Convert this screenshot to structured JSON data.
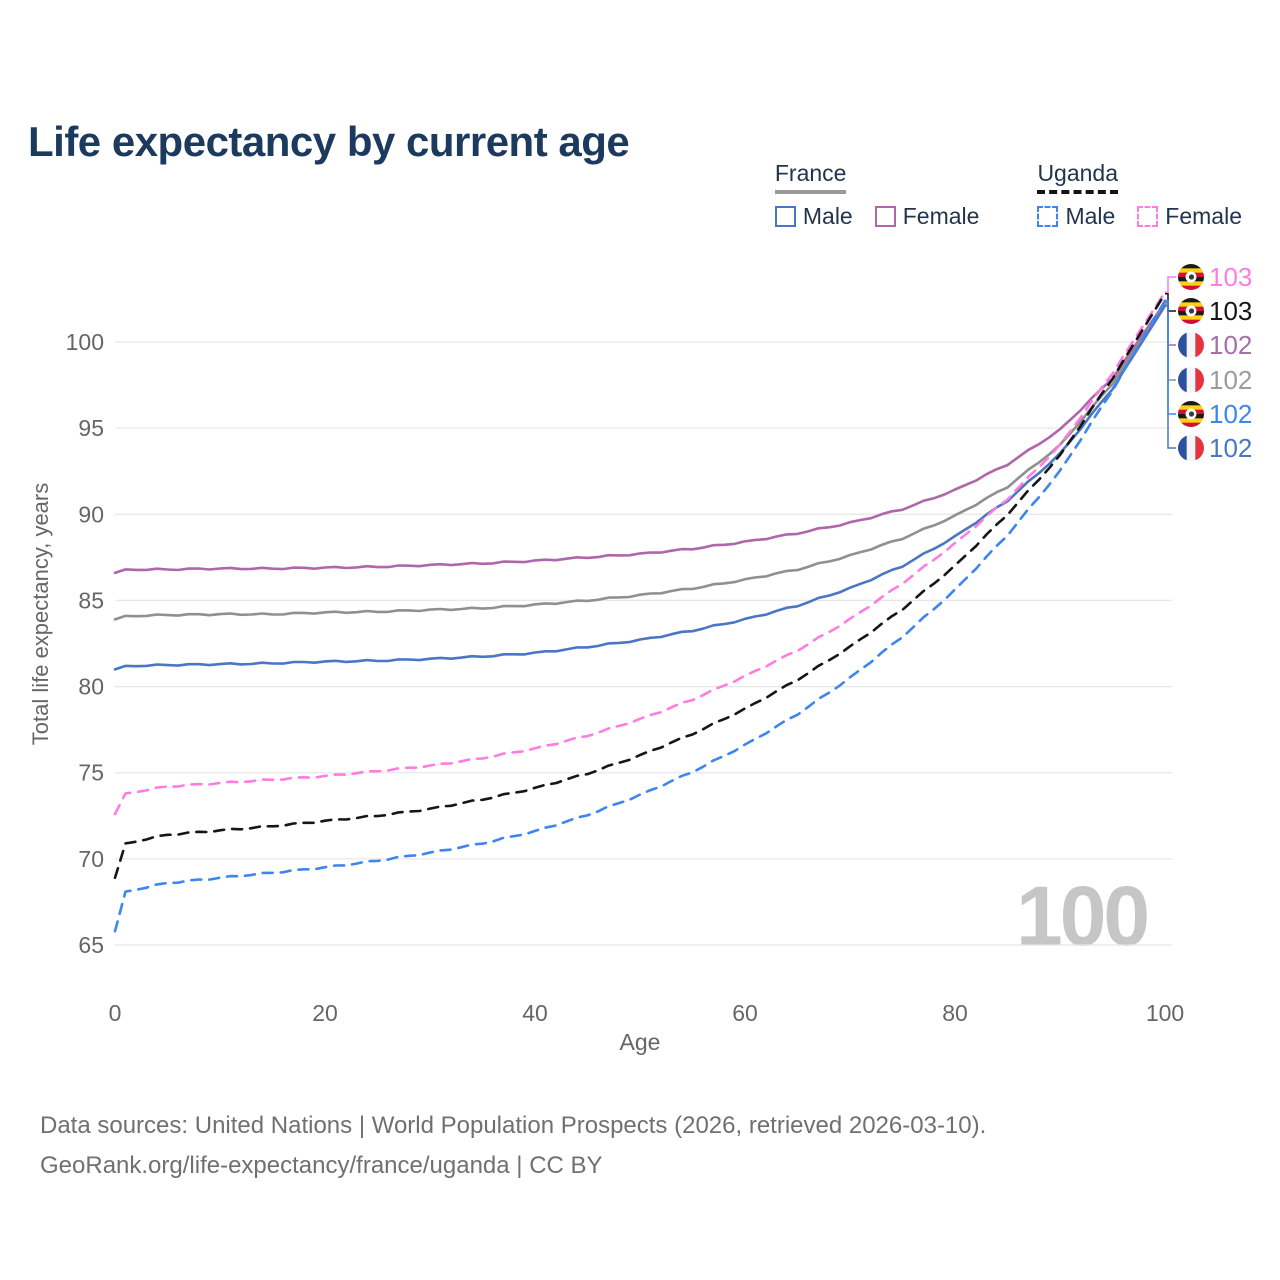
{
  "title": "Life expectancy by current age",
  "legend": {
    "groups": [
      {
        "country": "France",
        "line_style": "solid",
        "items": [
          {
            "label": "Male",
            "color": "#4a76c4"
          },
          {
            "label": "Female",
            "color": "#b066aa"
          }
        ]
      },
      {
        "country": "Uganda",
        "line_style": "dashed",
        "items": [
          {
            "label": "Male",
            "color": "#3d86f0"
          },
          {
            "label": "Female",
            "color": "#ff7ce0"
          }
        ]
      }
    ]
  },
  "watermark": "100",
  "footer": {
    "line1": "Data sources: United Nations | World Population Prospects (2026, retrieved 2026-03-10).",
    "line2": "GeoRank.org/life-expectancy/france/uganda | CC BY"
  },
  "chart_data": {
    "type": "line",
    "title": "Life expectancy by current age",
    "xlabel": "Age",
    "ylabel": "Total life expectancy, years",
    "xlim": [
      0,
      100
    ],
    "ylim": [
      65,
      103.5
    ],
    "x_ticks": [
      0,
      20,
      40,
      60,
      80,
      100
    ],
    "y_ticks": [
      65,
      70,
      75,
      80,
      85,
      90,
      95,
      100
    ],
    "grid": "horizontal",
    "x": [
      0,
      1,
      5,
      10,
      15,
      20,
      25,
      30,
      35,
      40,
      45,
      50,
      55,
      60,
      65,
      70,
      75,
      80,
      85,
      90,
      95,
      100
    ],
    "series": [
      {
        "id": "france-female",
        "name": "France Female",
        "color": "#b066aa",
        "dash": false,
        "values": [
          86.6,
          86.8,
          86.8,
          86.85,
          86.85,
          86.9,
          86.95,
          87.05,
          87.15,
          87.3,
          87.5,
          87.7,
          88.0,
          88.4,
          88.9,
          89.5,
          90.3,
          91.4,
          92.9,
          94.9,
          97.9,
          102.3
        ],
        "end_label": "102",
        "end_label_color": "#a76fa7",
        "flag": "france",
        "label_row": 2
      },
      {
        "id": "france-total",
        "name": "France",
        "color": "#909090",
        "dash": false,
        "values": [
          83.9,
          84.1,
          84.15,
          84.2,
          84.2,
          84.3,
          84.35,
          84.45,
          84.55,
          84.75,
          85.0,
          85.3,
          85.7,
          86.2,
          86.8,
          87.6,
          88.6,
          89.9,
          91.6,
          94.0,
          97.6,
          102.2
        ],
        "end_label": "102",
        "end_label_color": "#9c9c9c",
        "flag": "france",
        "label_row": 3
      },
      {
        "id": "france-male",
        "name": "France Male",
        "color": "#4a76c4",
        "dash": false,
        "values": [
          81.0,
          81.2,
          81.25,
          81.3,
          81.35,
          81.45,
          81.5,
          81.6,
          81.75,
          81.95,
          82.3,
          82.7,
          83.25,
          83.9,
          84.7,
          85.7,
          87.0,
          88.7,
          90.8,
          93.5,
          97.3,
          102.1
        ],
        "end_label": "102",
        "end_label_color": "#4a76c4",
        "flag": "france",
        "label_row": 5
      },
      {
        "id": "uganda-female",
        "name": "Uganda Female",
        "color": "#ff7ce0",
        "dash": true,
        "values": [
          72.6,
          73.8,
          74.2,
          74.4,
          74.6,
          74.8,
          75.1,
          75.4,
          75.85,
          76.4,
          77.15,
          78.1,
          79.25,
          80.6,
          82.1,
          83.9,
          86.0,
          88.3,
          90.9,
          94.0,
          98.2,
          102.9
        ],
        "end_label": "103",
        "end_label_color": "#ff7ce0",
        "flag": "uganda",
        "label_row": 0
      },
      {
        "id": "uganda-total",
        "name": "Uganda",
        "color": "#161616",
        "dash": true,
        "values": [
          68.9,
          70.9,
          71.4,
          71.65,
          71.9,
          72.2,
          72.5,
          72.9,
          73.45,
          74.1,
          74.95,
          76.0,
          77.25,
          78.7,
          80.4,
          82.3,
          84.5,
          87.0,
          90.0,
          93.4,
          97.9,
          102.8
        ],
        "end_label": "103",
        "end_label_color": "#161616",
        "flag": "uganda",
        "label_row": 1
      },
      {
        "id": "uganda-male",
        "name": "Uganda Male",
        "color": "#3d86f0",
        "dash": true,
        "values": [
          65.8,
          68.1,
          68.6,
          68.9,
          69.2,
          69.5,
          69.9,
          70.35,
          70.9,
          71.6,
          72.55,
          73.7,
          75.05,
          76.6,
          78.4,
          80.5,
          82.9,
          85.6,
          88.8,
          92.5,
          97.2,
          102.4
        ],
        "end_label": "102",
        "end_label_color": "#3d86f0",
        "flag": "uganda",
        "label_row": 4
      }
    ],
    "flag_colors": {
      "france": [
        "#2c4f9e",
        "#f4f5f7",
        "#e5333f"
      ],
      "uganda": [
        "#1a1a1a",
        "#fcd116",
        "#d21034"
      ]
    }
  }
}
